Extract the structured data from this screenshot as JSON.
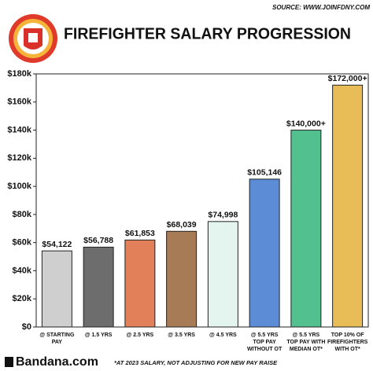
{
  "chart_data": {
    "type": "bar",
    "title": "FIREFIGHTER SALARY PROGRESSION",
    "source": "SOURCE: WWW.JOINFDNY.COM",
    "footnote": "*AT 2023 SALARY, NOT ADJUSTING FOR NEW PAY RAISE",
    "brand": "Bandana.com",
    "categories": [
      "@ STARTING PAY",
      "@ 1.5 YRS",
      "@ 2.5 YRS",
      "@ 3.5 YRS",
      "@ 4.5 YRS",
      "@ 5.5 YRS TOP PAY WITHOUT OT",
      "@ 5.5 YRS TOP PAY WITH MEDIAN OT*",
      "TOP 10% OF FIREFIGHTERS WITH OT*"
    ],
    "values": [
      54122,
      56788,
      61853,
      68039,
      74998,
      105146,
      140000,
      172000
    ],
    "value_labels": [
      "$54,122",
      "$56,788",
      "$61,853",
      "$68,039",
      "$74,998",
      "$105,146",
      "$140,000+",
      "$172,000+"
    ],
    "colors": [
      "#cfcfcf",
      "#6d6d6d",
      "#e2805a",
      "#a67b55",
      "#e4f5f0",
      "#5d8cd6",
      "#52c08f",
      "#e8bd57"
    ],
    "ylim": [
      0,
      180000
    ],
    "yticks": [
      {
        "value": 0,
        "label": "$0"
      },
      {
        "value": 20000,
        "label": "$20k"
      },
      {
        "value": 40000,
        "label": "$40k"
      },
      {
        "value": 60000,
        "label": "$60k"
      },
      {
        "value": 80000,
        "label": "$80k"
      },
      {
        "value": 100000,
        "label": "$100k"
      },
      {
        "value": 120000,
        "label": "$120k"
      },
      {
        "value": 140000,
        "label": "$140k"
      },
      {
        "value": 160000,
        "label": "$160k"
      },
      {
        "value": 180000,
        "label": "$180k"
      }
    ],
    "grid": false
  }
}
